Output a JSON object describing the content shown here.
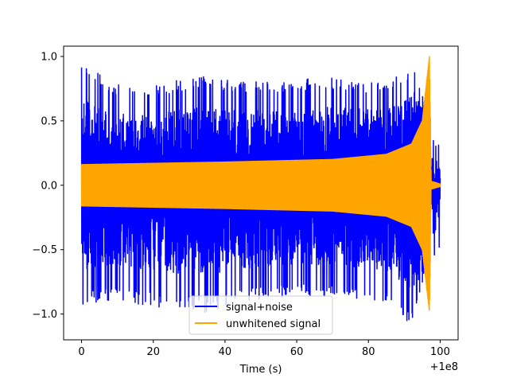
{
  "chart_data": {
    "type": "line",
    "title": "",
    "xlabel": "Time (s)",
    "ylabel": "",
    "x_offset_label": "+1e8",
    "xlim": [
      -5,
      105
    ],
    "ylim": [
      -1.2,
      1.08
    ],
    "x_ticks": [
      0,
      20,
      40,
      60,
      80,
      100
    ],
    "x_tick_labels": [
      "0",
      "20",
      "40",
      "60",
      "80",
      "100"
    ],
    "y_ticks": [
      -1.0,
      -0.5,
      0.0,
      0.5,
      1.0
    ],
    "y_tick_labels": [
      "−1.0",
      "−0.5",
      "0.0",
      "0.5",
      "1.0"
    ],
    "grid": false,
    "legend_position": "lower-center",
    "series": [
      {
        "name": "signal+noise",
        "color": "#0000ff",
        "x_range": [
          0,
          100
        ],
        "envelope_upper": [
          [
            0,
            0.96
          ],
          [
            10,
            0.78
          ],
          [
            20,
            0.78
          ],
          [
            33,
            0.85
          ],
          [
            45,
            0.8
          ],
          [
            60,
            0.82
          ],
          [
            70,
            0.84
          ],
          [
            80,
            0.8
          ],
          [
            90,
            0.86
          ],
          [
            92.5,
            0.97
          ],
          [
            96,
            0.6
          ],
          [
            97.5,
            0.08
          ],
          [
            98.5,
            0.55
          ],
          [
            100,
            0.25
          ]
        ],
        "envelope_lower": [
          [
            0,
            -0.94
          ],
          [
            8,
            -0.9
          ],
          [
            33,
            -1.0
          ],
          [
            50,
            -0.88
          ],
          [
            70,
            -0.86
          ],
          [
            85,
            -0.9
          ],
          [
            92,
            -1.09
          ],
          [
            95,
            -0.8
          ],
          [
            97.5,
            -0.1
          ],
          [
            98.5,
            -0.65
          ],
          [
            100,
            -0.45
          ]
        ]
      },
      {
        "name": "unwhitened signal",
        "color": "#ffa500",
        "x_range": [
          0,
          100
        ],
        "envelope_upper": [
          [
            0,
            0.16
          ],
          [
            40,
            0.18
          ],
          [
            70,
            0.2
          ],
          [
            85,
            0.24
          ],
          [
            92,
            0.32
          ],
          [
            95,
            0.5
          ],
          [
            97.0,
            1.0
          ],
          [
            97.5,
            0.03
          ],
          [
            100,
            0.01
          ]
        ],
        "envelope_lower": [
          [
            0,
            -0.16
          ],
          [
            40,
            -0.18
          ],
          [
            70,
            -0.2
          ],
          [
            85,
            -0.24
          ],
          [
            92,
            -0.32
          ],
          [
            95,
            -0.5
          ],
          [
            97.0,
            -0.98
          ],
          [
            97.5,
            -0.03
          ],
          [
            100,
            -0.01
          ]
        ]
      }
    ]
  }
}
